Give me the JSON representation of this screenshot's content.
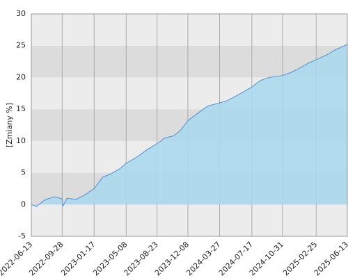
{
  "chart_data": {
    "type": "area",
    "y_label": "[Zmiany %]",
    "color": "#4a90d9",
    "fill": "#a9d8ef",
    "x": [
      "2022-06-13",
      "2022-07-01",
      "2022-08-01",
      "2022-09-01",
      "2022-09-28",
      "2022-10-01",
      "2022-10-15",
      "2022-11-15",
      "2022-12-15",
      "2023-01-17",
      "2023-02-15",
      "2023-03-15",
      "2023-04-15",
      "2023-05-08",
      "2023-06-15",
      "2023-07-15",
      "2023-08-23",
      "2023-09-20",
      "2023-10-20",
      "2023-11-15",
      "2023-12-08",
      "2024-01-15",
      "2024-02-15",
      "2024-03-27",
      "2024-04-20",
      "2024-05-20",
      "2024-06-20",
      "2024-07-17",
      "2024-08-15",
      "2024-09-15",
      "2024-10-31",
      "2024-11-30",
      "2024-12-31",
      "2025-01-31",
      "2025-02-25",
      "2025-03-31",
      "2025-05-01",
      "2025-06-13"
    ],
    "values": [
      0,
      -0.3,
      0.8,
      1.2,
      0.9,
      -0.2,
      1.0,
      0.8,
      1.5,
      2.5,
      4.3,
      4.8,
      5.6,
      6.5,
      7.5,
      8.5,
      9.6,
      10.5,
      10.8,
      11.8,
      13.2,
      14.5,
      15.5,
      16.0,
      16.3,
      17.0,
      17.8,
      18.5,
      19.5,
      20.0,
      20.3,
      20.8,
      21.5,
      22.3,
      22.8,
      23.5,
      24.3,
      25.2
    ],
    "xlim": [
      "2022-06-13",
      "2025-06-13"
    ],
    "xticks": [
      "2022-06-13",
      "2022-09-28",
      "2023-01-17",
      "2023-05-08",
      "2023-08-23",
      "2023-12-08",
      "2024-03-27",
      "2024-07-17",
      "2024-10-31",
      "2025-02-25",
      "2025-06-13"
    ],
    "ylim": [
      -5,
      30
    ],
    "yticks": [
      -5,
      0,
      5,
      10,
      15,
      20,
      25,
      30
    ],
    "grid": true
  }
}
